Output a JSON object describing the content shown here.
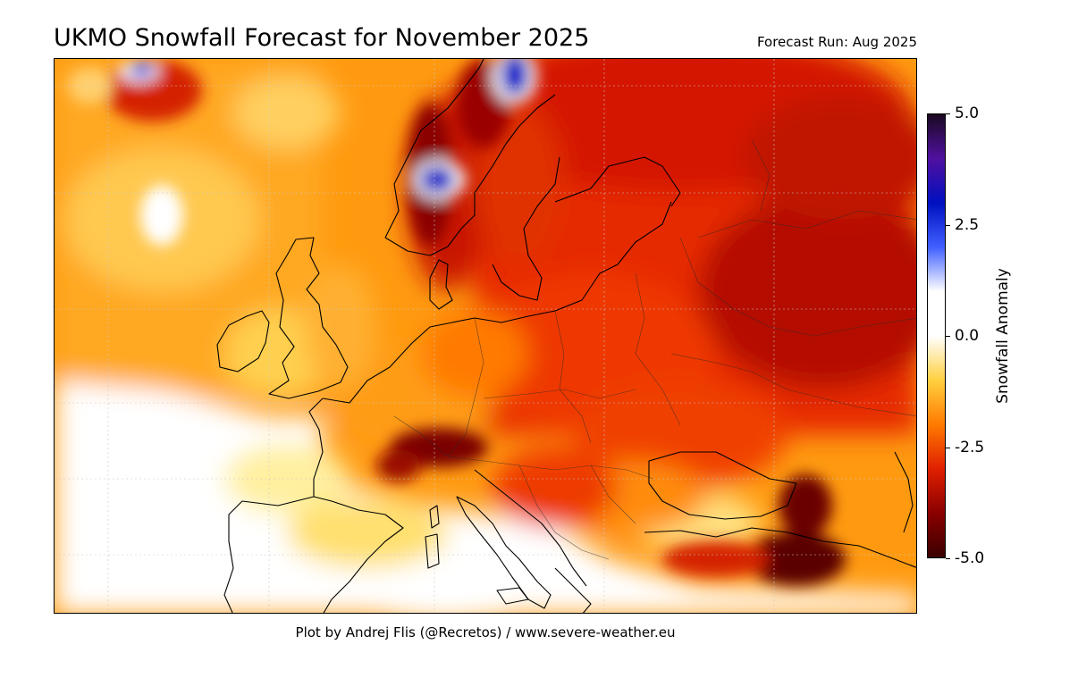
{
  "title": "UKMO Snowfall Forecast for November 2025",
  "forecast_run": "Forecast Run: Aug 2025",
  "credit": "Plot by Andrej Flis (@Recretos) / www.severe-weather.eu",
  "colorbar": {
    "label": "Snowfall Anomaly",
    "ticks": [
      "5.0",
      "2.5",
      "0.0",
      "-2.5",
      "-5.0"
    ],
    "tick_values": [
      5.0,
      2.5,
      0.0,
      -2.5,
      -5.0
    ],
    "range": [
      -5.0,
      5.0
    ],
    "colors": [
      "#3a0000",
      "#8a0000",
      "#e02000",
      "#ff7a00",
      "#ffd040",
      "#ffffff",
      "#ffffff",
      "#4060ff",
      "#0010c0",
      "#5010a0",
      "#1a0a20"
    ]
  },
  "map": {
    "region": "Europe",
    "colors": {
      "very_negative": "#6a0000",
      "strong_negative": "#c01000",
      "negative": "#e83000",
      "moderate_negative": "#ff7a00",
      "slight_negative": "#ffd040",
      "neutral": "#ffffff",
      "positive": "#0020d0",
      "coastline": "#000000"
    }
  }
}
